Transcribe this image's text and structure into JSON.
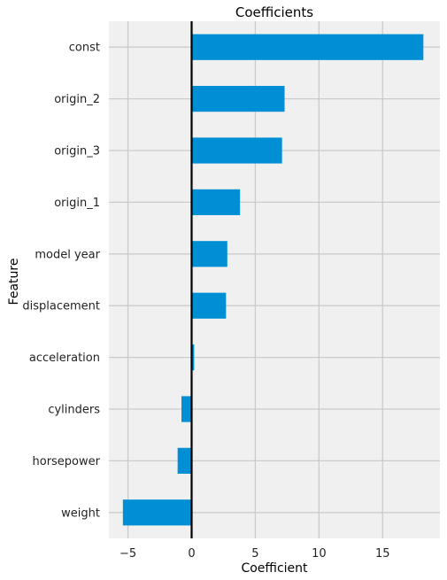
{
  "chart_data": {
    "type": "bar",
    "orientation": "horizontal",
    "title": "Coefficients",
    "xlabel": "Coefficient",
    "ylabel": "Feature",
    "categories": [
      "const",
      "origin_2",
      "origin_3",
      "origin_1",
      "model year",
      "displacement",
      "acceleration",
      "cylinders",
      "horsepower",
      "weight"
    ],
    "values": [
      18.2,
      7.3,
      7.1,
      3.8,
      2.8,
      2.7,
      0.2,
      -0.8,
      -1.1,
      -5.4
    ],
    "xlim": [
      -6.5,
      19.5
    ],
    "xticks": [
      -5,
      0,
      5,
      10,
      15
    ],
    "xtick_labels": [
      "−5",
      "0",
      "5",
      "10",
      "15"
    ],
    "grid": true,
    "bar_color": "#008fd5",
    "background_color": "#f0f0f0",
    "grid_color": "#cbcbcb",
    "zero_line_color": "#000000"
  }
}
